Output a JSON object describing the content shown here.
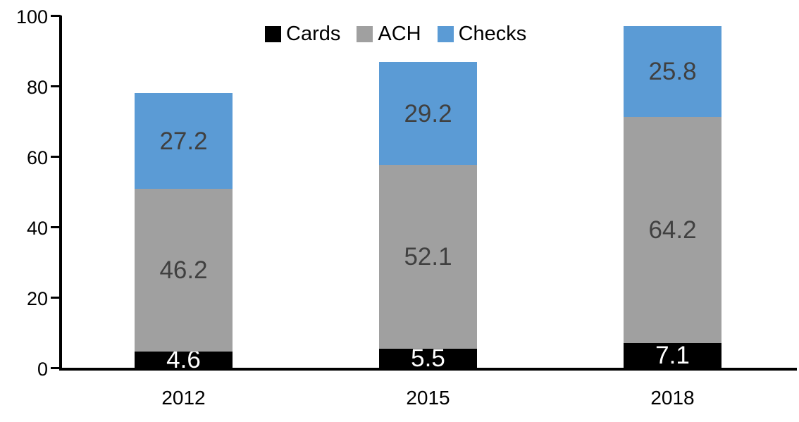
{
  "chart_data": {
    "type": "bar",
    "stacked": true,
    "title": "",
    "xlabel": "",
    "ylabel": "",
    "categories": [
      "2012",
      "2015",
      "2018"
    ],
    "series": [
      {
        "name": "Cards",
        "color": "#000000",
        "label_color": "#ffffff",
        "values": [
          4.6,
          5.5,
          7.1
        ]
      },
      {
        "name": "ACH",
        "color": "#a0a0a0",
        "label_color": "#404040",
        "values": [
          46.2,
          52.1,
          64.2
        ]
      },
      {
        "name": "Checks",
        "color": "#5b9bd5",
        "label_color": "#404040",
        "values": [
          27.2,
          29.2,
          25.8
        ]
      }
    ],
    "ylim": [
      0,
      100
    ],
    "yticks": [
      0,
      20,
      40,
      60,
      80,
      100
    ],
    "grid": false,
    "legend_position": "top-center"
  },
  "colors": {
    "axis": "#000000",
    "background": "#ffffff"
  }
}
